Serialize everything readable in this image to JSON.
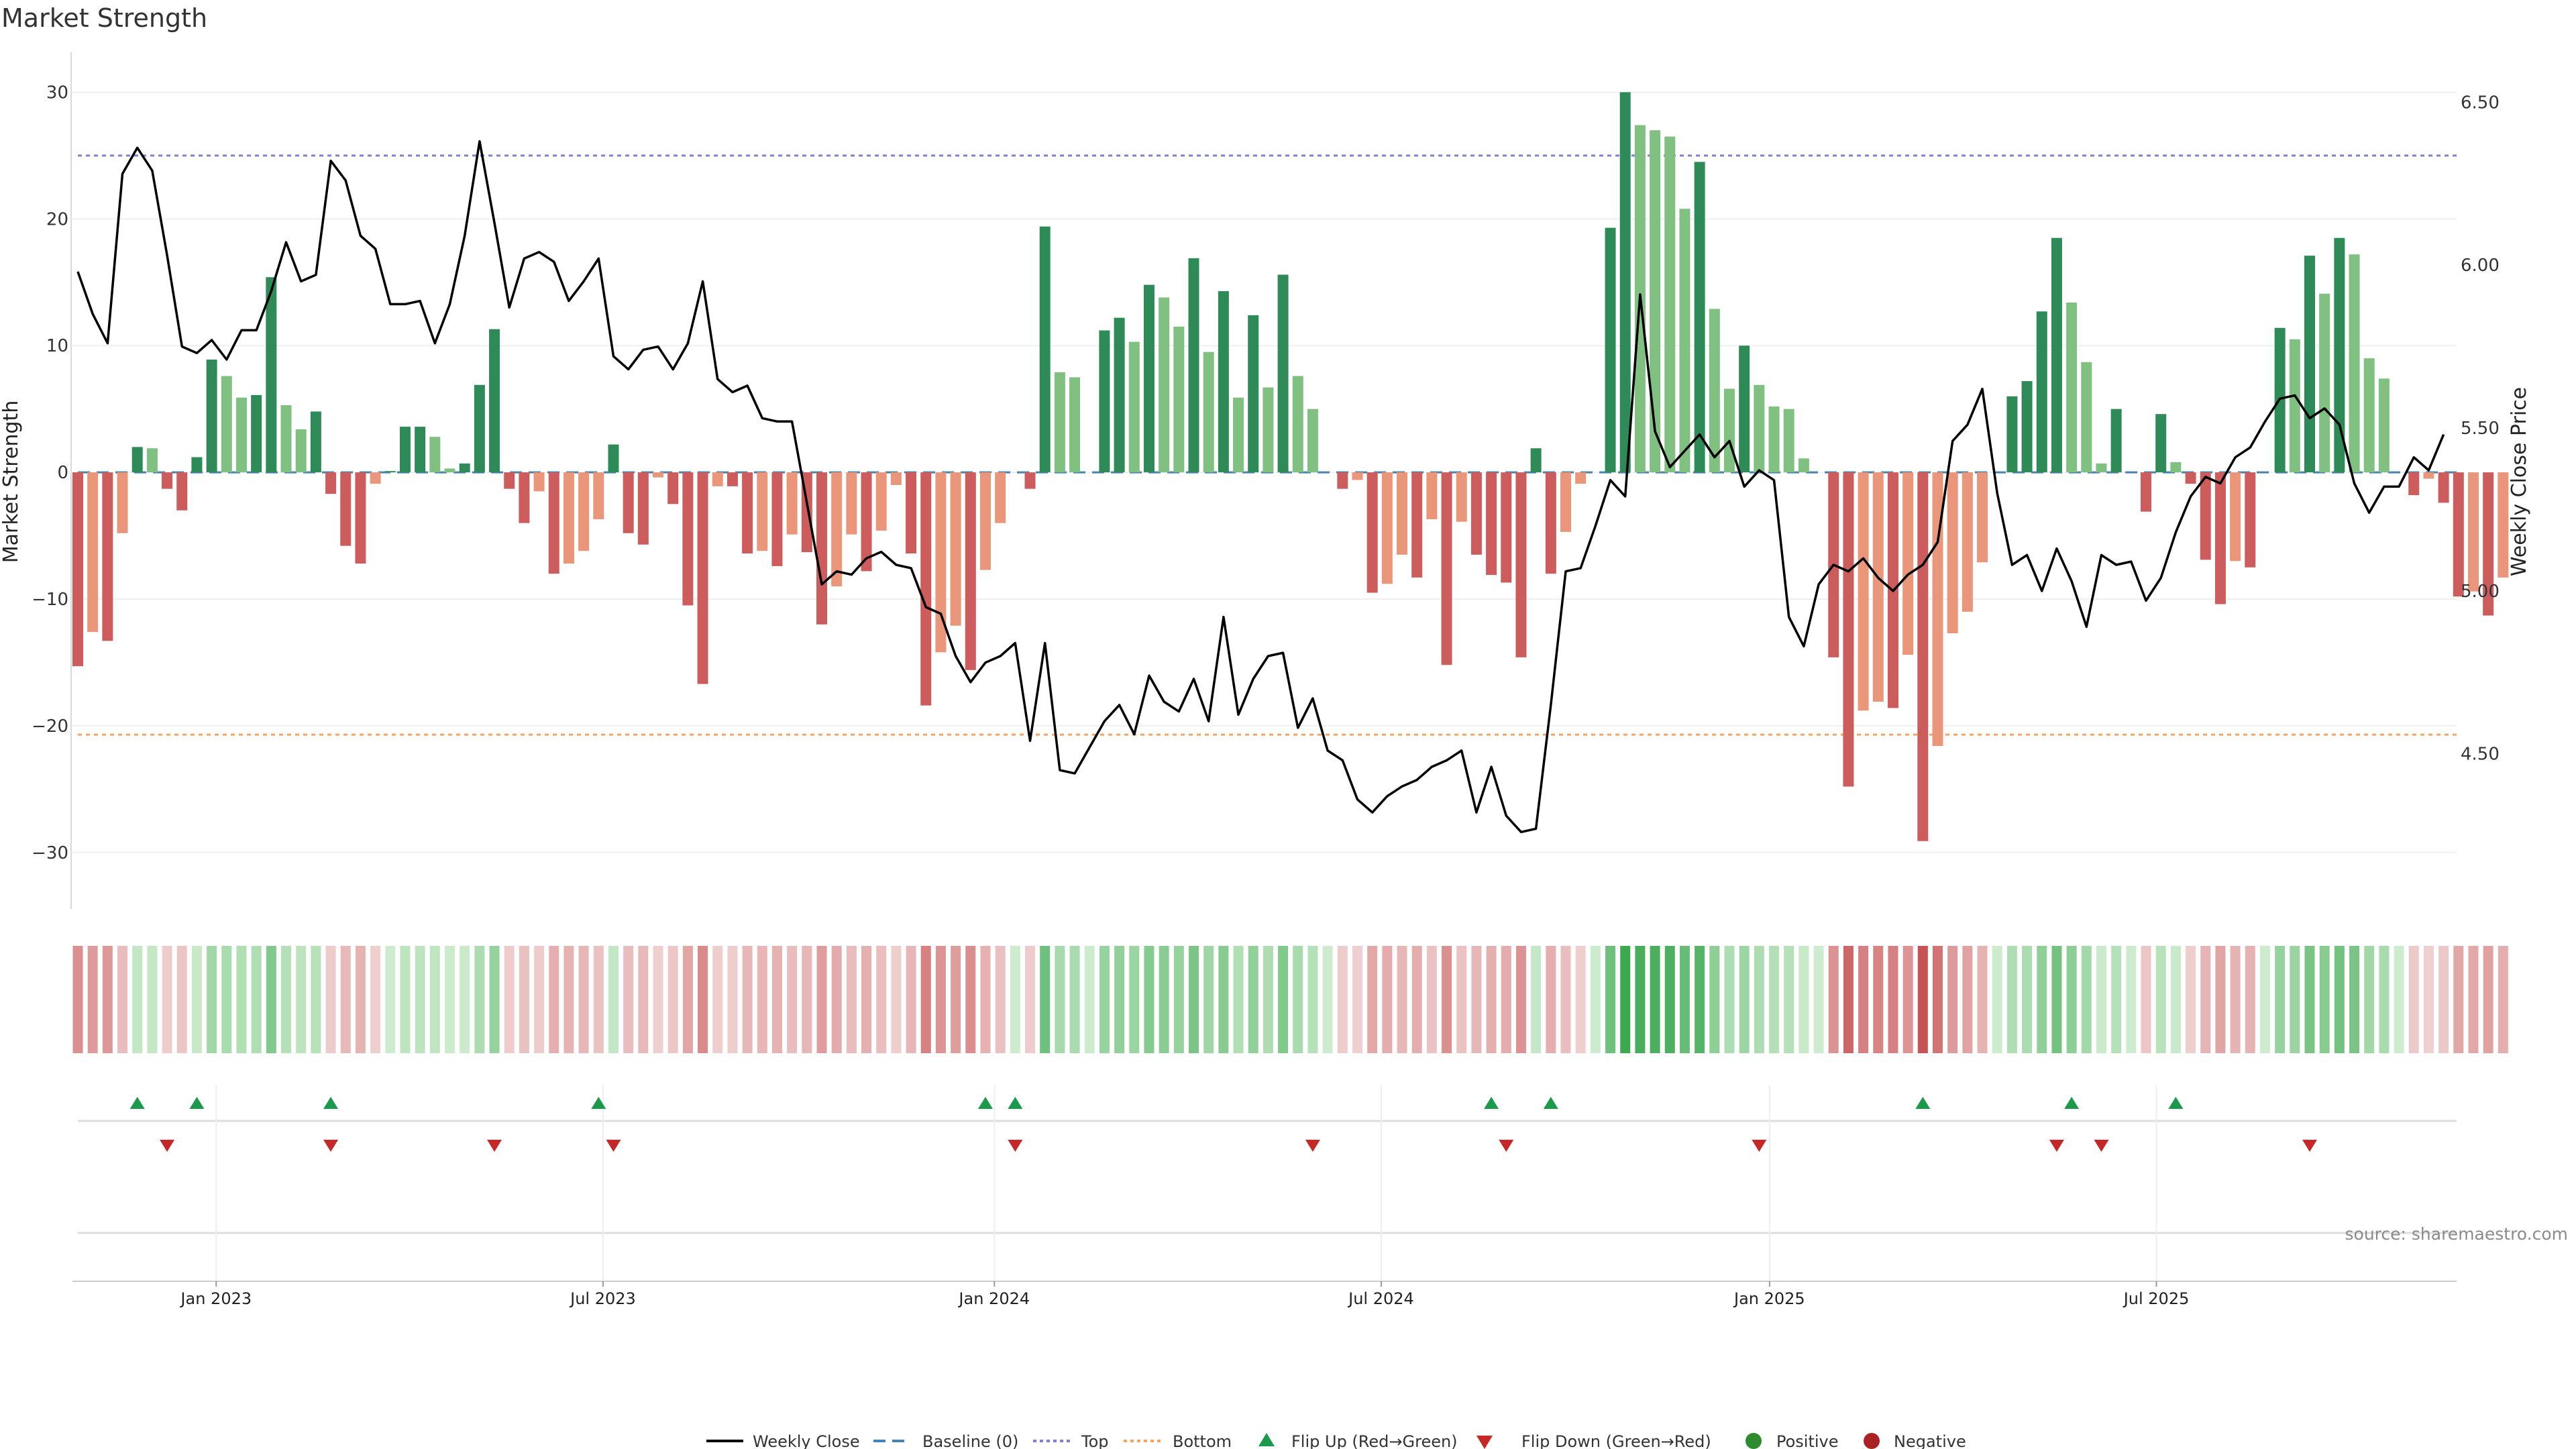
{
  "chart_data": {
    "type": "bar",
    "title": "Market Strength",
    "ylabel": "Market Strength",
    "y2label": "Weekly Close Price",
    "ylim": [
      -32.5,
      30.5
    ],
    "y2lim": [
      4.1,
      6.55
    ],
    "yticks": [
      "30",
      "20",
      "10",
      "0",
      "−10",
      "−20",
      "−30"
    ],
    "yticks_values": [
      30,
      20,
      10,
      0,
      -10,
      -20,
      -30
    ],
    "y2ticks": [
      "6.50",
      "6.00",
      "5.50",
      "5.00",
      "4.50"
    ],
    "y2ticks_values": [
      6.5,
      6.0,
      5.5,
      5.0,
      4.5
    ],
    "xticks": [
      "Jan 2023",
      "Jul 2023",
      "Jan 2024",
      "Jul 2024",
      "Jan 2025",
      "Jul 2025"
    ],
    "xticks_week_index": [
      9.3,
      35.3,
      61.6,
      87.6,
      113.7,
      139.7
    ],
    "top_line": 25,
    "bottom_line": -20.7,
    "series": [
      {
        "name": "Market Strength",
        "values": [
          -15.3,
          -12.6,
          -13.3,
          -4.8,
          2.0,
          1.9,
          -1.3,
          -3.0,
          1.2,
          8.9,
          7.6,
          5.9,
          6.1,
          15.4,
          5.3,
          3.4,
          4.8,
          -1.7,
          -5.8,
          -7.2,
          -0.9,
          0.1,
          3.6,
          3.6,
          2.8,
          0.3,
          0.7,
          6.9,
          11.3,
          -1.3,
          -4.0,
          -1.5,
          -8.0,
          -7.2,
          -6.2,
          -3.7,
          2.2,
          -4.8,
          -5.7,
          -0.4,
          -2.5,
          -10.5,
          -16.7,
          -1.1,
          -1.1,
          -6.4,
          -6.2,
          -7.4,
          -4.9,
          -6.3,
          -12.0,
          -9.0,
          -4.9,
          -7.8,
          -4.6,
          -1.0,
          -6.4,
          -18.4,
          -14.2,
          -12.1,
          -15.6,
          -7.7,
          -4.0,
          0.0,
          -1.3,
          19.4,
          7.9,
          7.5,
          0.0,
          11.2,
          12.2,
          10.3,
          14.8,
          13.8,
          11.5,
          16.9,
          9.5,
          14.3,
          5.9,
          12.4,
          6.7,
          15.6,
          7.6,
          5.0,
          0.0,
          -1.3,
          -0.6,
          -9.5,
          -8.8,
          -6.5,
          -8.3,
          -3.7,
          -15.2,
          -3.9,
          -6.5,
          -8.1,
          -8.7,
          -14.6,
          1.9,
          -8.0,
          -4.7,
          -0.9,
          0.0,
          19.3,
          30.0,
          27.4,
          27.0,
          26.5,
          20.8,
          24.5,
          12.9,
          6.6,
          10.0,
          6.9,
          5.2,
          5.0,
          1.1,
          0.0,
          -14.6,
          -24.8,
          -18.8,
          -18.1,
          -18.6,
          -14.4,
          -29.1,
          -21.6,
          -12.7,
          -11.0,
          -7.1,
          0.0,
          6.0,
          7.2,
          12.7,
          18.5,
          13.4,
          8.7,
          0.7,
          5.0,
          0.0,
          -3.1,
          4.6,
          0.8,
          -0.9,
          -6.9,
          -10.4,
          -7.0,
          -7.5,
          0.0,
          11.4,
          10.5,
          17.1,
          14.1,
          18.5,
          17.2,
          9.0,
          7.4,
          0.0,
          -1.8,
          -0.5,
          -2.4,
          -9.8,
          -9.4,
          -11.3,
          -8.3
        ]
      },
      {
        "name": "Weekly Close",
        "values": [
          5.98,
          5.85,
          5.76,
          6.28,
          6.36,
          6.29,
          6.03,
          5.75,
          5.73,
          5.77,
          5.71,
          5.8,
          5.8,
          5.92,
          6.07,
          5.95,
          5.97,
          6.32,
          6.26,
          6.09,
          6.05,
          5.88,
          5.88,
          5.89,
          5.76,
          5.88,
          6.09,
          6.38,
          6.13,
          5.87,
          6.02,
          6.04,
          6.01,
          5.89,
          5.95,
          6.02,
          5.72,
          5.68,
          5.74,
          5.75,
          5.68,
          5.76,
          5.95,
          5.65,
          5.61,
          5.63,
          5.53,
          5.52,
          5.52,
          5.27,
          5.02,
          5.06,
          5.05,
          5.1,
          5.12,
          5.08,
          5.07,
          4.95,
          4.93,
          4.8,
          4.72,
          4.78,
          4.8,
          4.84,
          4.54,
          4.84,
          4.45,
          4.44,
          4.52,
          4.6,
          4.65,
          4.56,
          4.74,
          4.66,
          4.63,
          4.73,
          4.6,
          4.92,
          4.62,
          4.73,
          4.8,
          4.81,
          4.58,
          4.67,
          4.51,
          4.48,
          4.36,
          4.32,
          4.37,
          4.4,
          4.42,
          4.46,
          4.48,
          4.51,
          4.32,
          4.46,
          4.31,
          4.26,
          4.27,
          4.65,
          5.06,
          5.07,
          5.2,
          5.34,
          5.29,
          5.91,
          5.49,
          5.38,
          5.43,
          5.48,
          5.41,
          5.46,
          5.32,
          5.37,
          5.34,
          4.92,
          4.83,
          5.02,
          5.08,
          5.06,
          5.1,
          5.04,
          5.0,
          5.05,
          5.08,
          5.15,
          5.46,
          5.51,
          5.62,
          5.3,
          5.08,
          5.11,
          5.0,
          5.13,
          5.03,
          4.89,
          5.11,
          5.08,
          5.09,
          4.97,
          5.04,
          5.18,
          5.29,
          5.35,
          5.33,
          5.41,
          5.44,
          5.52,
          5.59,
          5.6,
          5.53,
          5.56,
          5.51,
          5.33,
          5.24,
          5.32,
          5.32,
          5.41,
          5.37,
          5.48
        ]
      }
    ],
    "flip_up_weeks": [
      4,
      8,
      17,
      35,
      61,
      63,
      95,
      99,
      124,
      134,
      141
    ],
    "flip_down_weeks": [
      6,
      17,
      28,
      36,
      63,
      83,
      96,
      113,
      133,
      136,
      150
    ],
    "legend": [
      "Weekly Close",
      "Baseline (0)",
      "Top",
      "Bottom",
      "Flip Up (Red→Green)",
      "Flip Down (Green→Red)",
      "Positive",
      "Negative"
    ],
    "source": "source: sharemaestro.com"
  },
  "colors": {
    "pos_dark": "#2e8b57",
    "pos_light": "#80c080",
    "neg_dark": "#cd5c5c",
    "neg_light": "#e9967a",
    "price_line": "#000000",
    "top_line": "#8080cc",
    "bottom_line": "#f4a460",
    "baseline": "#4682b4",
    "flip_up": "#1a9a4a",
    "flip_down": "#c62828",
    "positive_dot": "#2e8b2e",
    "negative_dot": "#aa2222"
  }
}
